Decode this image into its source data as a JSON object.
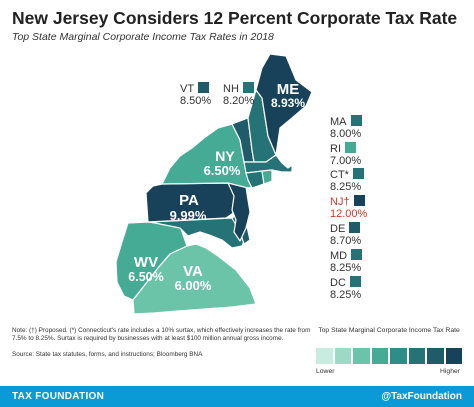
{
  "title": "New Jersey Considers 12 Percent Corporate Tax Rate",
  "subtitle": "Top State Marginal Corporate Income Tax Rates in 2018",
  "colors": {
    "c1": "#c8ecdf",
    "c2": "#9bdac4",
    "c3": "#6cc4a8",
    "c4": "#45ab95",
    "c5": "#2e8e87",
    "c6": "#267377",
    "c7": "#1f5b69",
    "c8": "#17425a",
    "highlight": "#d8392c",
    "footer": "#0a9ad6"
  },
  "states": [
    {
      "abbr": "ME",
      "rate": "8.93%",
      "color": "#17425a"
    },
    {
      "abbr": "VT",
      "rate": "8.50%",
      "color": "#1f5b69"
    },
    {
      "abbr": "NH",
      "rate": "8.20%",
      "color": "#267377"
    },
    {
      "abbr": "MA",
      "rate": "8.00%",
      "color": "#267377"
    },
    {
      "abbr": "RI",
      "rate": "7.00%",
      "color": "#45ab95"
    },
    {
      "abbr": "CT*",
      "rate": "8.25%",
      "color": "#267377"
    },
    {
      "abbr": "NJ†",
      "rate": "12.00%",
      "color": "#17425a"
    },
    {
      "abbr": "DE",
      "rate": "8.70%",
      "color": "#1f5b69"
    },
    {
      "abbr": "MD",
      "rate": "8.25%",
      "color": "#267377"
    },
    {
      "abbr": "DC",
      "rate": "8.25%",
      "color": "#267377"
    },
    {
      "abbr": "NY",
      "rate": "6.50%",
      "color": "#45ab95"
    },
    {
      "abbr": "PA",
      "rate": "9.99%",
      "color": "#17425a"
    },
    {
      "abbr": "WV",
      "rate": "6.50%",
      "color": "#45ab95"
    },
    {
      "abbr": "VA",
      "rate": "6.00%",
      "color": "#6cc4a8"
    }
  ],
  "map_labels": {
    "me": {
      "abbr": "ME",
      "rate": "8.93%"
    },
    "ny": {
      "abbr": "NY",
      "rate": "6.50%"
    },
    "pa": {
      "abbr": "PA",
      "rate": "9.99%"
    },
    "wv": {
      "abbr": "WV",
      "rate": "6.50%"
    },
    "va": {
      "abbr": "VA",
      "rate": "6.00%"
    }
  },
  "callouts": {
    "vt": {
      "abbr": "VT",
      "rate": "8.50%"
    },
    "nh": {
      "abbr": "NH",
      "rate": "8.20%"
    },
    "ma": {
      "abbr": "MA",
      "rate": "8.00%"
    },
    "ri": {
      "abbr": "RI",
      "rate": "7.00%"
    },
    "ct": {
      "abbr": "CT*",
      "rate": "8.25%"
    },
    "nj": {
      "abbr": "NJ†",
      "rate": "12.00%"
    },
    "de": {
      "abbr": "DE",
      "rate": "8.70%"
    },
    "md": {
      "abbr": "MD",
      "rate": "8.25%"
    },
    "dc": {
      "abbr": "DC",
      "rate": "8.25%"
    }
  },
  "note": "Note: (†) Proposed. (*) Connecticut's rate includes a 10% surtax, which effectively increases the rate from 7.5% to 8.25%. Surtax is required by businesses with at least $100 million annual gross income.",
  "source": "Source: State tax statutes, forms, and instructions; Bloomberg BNA",
  "legend": {
    "title": "Top State Marginal Corporate Income Tax Rate",
    "low": "Lower",
    "high": "Higher",
    "swatches": [
      "#c8ecdf",
      "#9bdac4",
      "#6cc4a8",
      "#45ab95",
      "#2e8e87",
      "#267377",
      "#1f5b69",
      "#17425a"
    ]
  },
  "footer": {
    "left": "TAX FOUNDATION",
    "right": "@TaxFoundation"
  }
}
